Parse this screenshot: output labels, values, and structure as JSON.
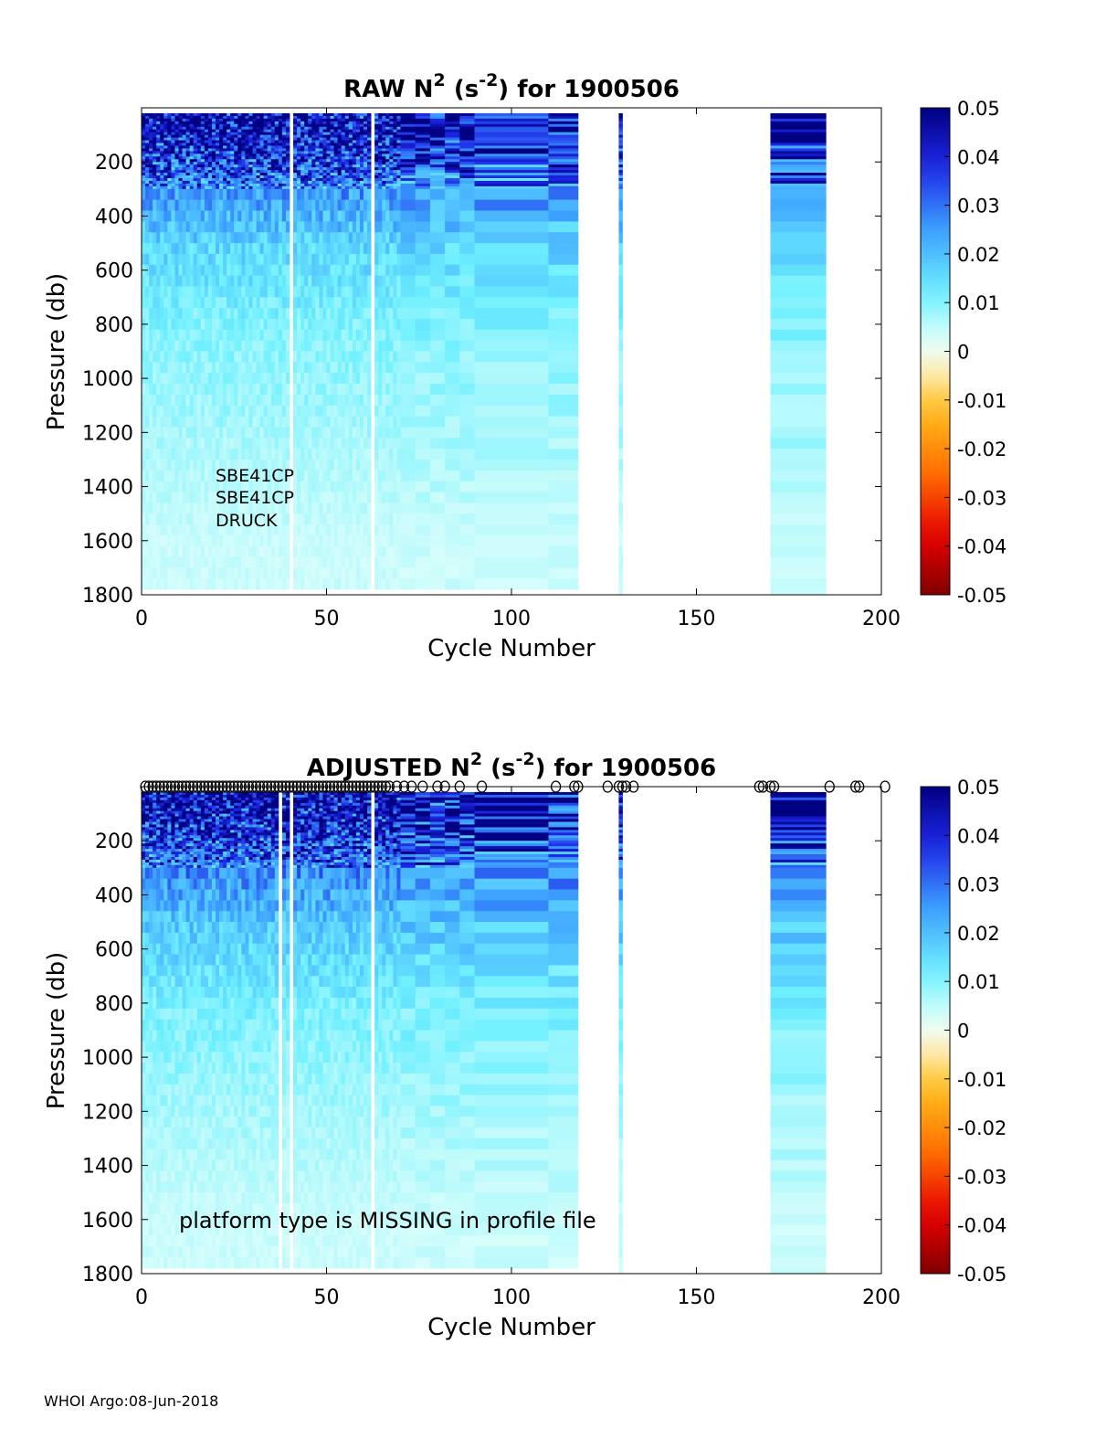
{
  "footer": "WHOI Argo:08-Jun-2018",
  "chart_data": [
    {
      "type": "heatmap",
      "title": {
        "main": "RAW N",
        "sup1": "2",
        "mid": " (s",
        "sup2": "-2",
        "end": ") for 1900506"
      },
      "xlabel": "Cycle Number",
      "ylabel": "Pressure (db)",
      "xlim": [
        0,
        200
      ],
      "ylim": [
        0,
        1800
      ],
      "y_reversed": true,
      "xticks": [
        0,
        50,
        100,
        150,
        200
      ],
      "yticks": [
        200,
        400,
        600,
        800,
        1000,
        1200,
        1400,
        1600,
        1800
      ],
      "colorbar": {
        "min": -0.05,
        "max": 0.05,
        "ticks": [
          0.05,
          0.04,
          0.03,
          0.02,
          0.01,
          0,
          -0.01,
          -0.02,
          -0.03,
          -0.04,
          -0.05
        ]
      },
      "annotations": [
        "SBE41CP",
        "SBE41CP",
        "DRUCK"
      ],
      "data_coverage": {
        "cycles_with_data": [
          [
            0,
            118
          ],
          [
            129,
            130
          ],
          [
            170,
            185
          ]
        ],
        "gaps_white": [
          40,
          62
        ]
      },
      "profile_typical": [
        {
          "pressure": 50,
          "n2": 0.045
        },
        {
          "pressure": 150,
          "n2": 0.04
        },
        {
          "pressure": 300,
          "n2": 0.025
        },
        {
          "pressure": 500,
          "n2": 0.016
        },
        {
          "pressure": 800,
          "n2": 0.01
        },
        {
          "pressure": 1200,
          "n2": 0.007
        },
        {
          "pressure": 1600,
          "n2": 0.004
        }
      ],
      "markers": []
    },
    {
      "type": "heatmap",
      "title": {
        "main": "ADJUSTED N",
        "sup1": "2",
        "mid": " (s",
        "sup2": "-2",
        "end": ") for 1900506"
      },
      "xlabel": "Cycle Number",
      "ylabel": "Pressure (db)",
      "xlim": [
        0,
        200
      ],
      "ylim": [
        0,
        1800
      ],
      "y_reversed": true,
      "xticks": [
        0,
        50,
        100,
        150,
        200
      ],
      "yticks": [
        200,
        400,
        600,
        800,
        1000,
        1200,
        1400,
        1600,
        1800
      ],
      "colorbar": {
        "min": -0.05,
        "max": 0.05,
        "ticks": [
          0.05,
          0.04,
          0.03,
          0.02,
          0.01,
          0,
          -0.01,
          -0.02,
          -0.03,
          -0.04,
          -0.05
        ]
      },
      "annotations": [
        "platform type is MISSING in profile file"
      ],
      "data_coverage": {
        "cycles_with_data": [
          [
            0,
            118
          ],
          [
            129,
            130
          ],
          [
            170,
            185
          ]
        ],
        "gaps_white": [
          37,
          40,
          62
        ]
      },
      "profile_typical": [
        {
          "pressure": 50,
          "n2": 0.045
        },
        {
          "pressure": 150,
          "n2": 0.04
        },
        {
          "pressure": 300,
          "n2": 0.027
        },
        {
          "pressure": 500,
          "n2": 0.018
        },
        {
          "pressure": 800,
          "n2": 0.011
        },
        {
          "pressure": 1200,
          "n2": 0.007
        },
        {
          "pressure": 1600,
          "n2": 0.004
        }
      ],
      "markers": [
        1,
        2,
        3,
        4,
        5,
        6,
        7,
        8,
        9,
        10,
        11,
        12,
        13,
        14,
        15,
        16,
        17,
        18,
        19,
        20,
        21,
        22,
        23,
        24,
        25,
        26,
        27,
        28,
        29,
        30,
        31,
        32,
        33,
        34,
        35,
        36,
        37,
        38,
        39,
        40,
        41,
        42,
        43,
        44,
        45,
        46,
        47,
        48,
        49,
        50,
        51,
        52,
        53,
        54,
        55,
        56,
        57,
        58,
        59,
        60,
        61,
        62,
        63,
        64,
        65,
        66,
        67,
        69,
        71,
        73,
        76,
        80,
        82,
        86,
        92,
        112,
        117,
        118,
        126,
        129,
        130,
        131,
        133,
        167,
        168,
        170,
        171,
        186,
        193,
        194,
        201
      ]
    }
  ]
}
